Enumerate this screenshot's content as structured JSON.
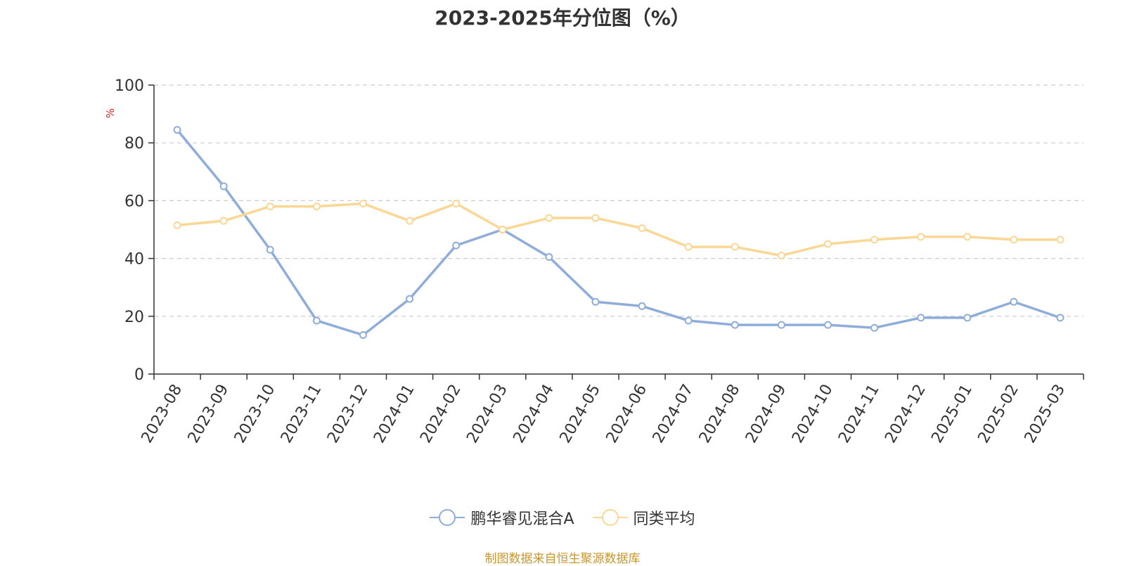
{
  "chart_data": {
    "type": "line",
    "title": "2023-2025年分位图（%）",
    "ylabel": "%",
    "xlabel": "",
    "ylim": [
      0,
      100
    ],
    "yticks": [
      "0",
      "20",
      "40",
      "60",
      "80",
      "100"
    ],
    "grid": true,
    "legend_position": "bottom",
    "categories": [
      "2023-08",
      "2023-09",
      "2023-10",
      "2023-11",
      "2023-12",
      "2024-01",
      "2024-02",
      "2024-03",
      "2024-04",
      "2024-05",
      "2024-06",
      "2024-07",
      "2024-08",
      "2024-09",
      "2024-10",
      "2024-11",
      "2024-12",
      "2025-01",
      "2025-02",
      "2025-03"
    ],
    "series": [
      {
        "name": "鹏华睿见混合A",
        "color": "#8eaddb",
        "values": [
          84.5,
          65,
          43,
          18.5,
          13.5,
          26,
          44.5,
          50,
          40.5,
          25,
          23.5,
          18.5,
          17,
          17,
          17,
          16,
          19.5,
          19.5,
          25,
          19.5
        ]
      },
      {
        "name": "同类平均",
        "color": "#fad794",
        "values": [
          51.5,
          53,
          58,
          58,
          59,
          53,
          59,
          50,
          54,
          54,
          50.5,
          44,
          44,
          41,
          45,
          46.5,
          47.5,
          47.5,
          46.5,
          46.5
        ]
      }
    ]
  },
  "source_note": "制图数据来自恒生聚源数据库"
}
